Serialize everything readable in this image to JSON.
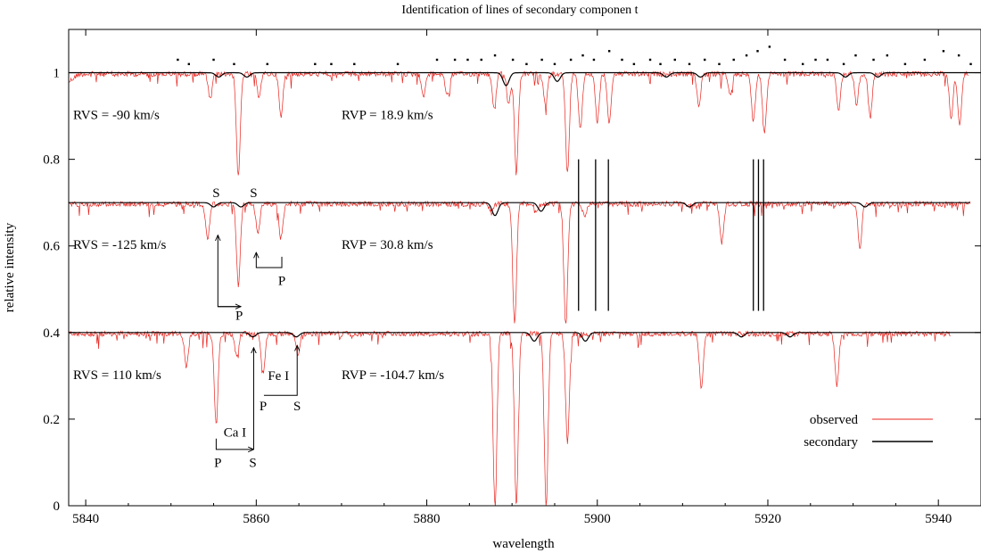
{
  "chart_data": {
    "type": "line",
    "title": "Identification of lines of secondary componen t",
    "xlabel": "wavelength",
    "ylabel": "relative intensity",
    "xlim": [
      5838,
      5945
    ],
    "ylim": [
      0,
      1.1
    ],
    "xticks": [
      5840,
      5860,
      5880,
      5900,
      5920,
      5940
    ],
    "yticks": [
      0,
      0.2,
      0.4,
      0.6,
      0.8,
      1
    ],
    "ytick_labels": [
      "0",
      "0.2",
      "0.4",
      "0.6",
      "0.8",
      "1"
    ],
    "grid": false,
    "legend": {
      "placement": "bottom-right",
      "entries": [
        {
          "name": "observed",
          "color": "#e8251f"
        },
        {
          "name": "secondary",
          "color": "#000000"
        }
      ]
    },
    "panels": [
      {
        "continuum": 1.0,
        "rvs_label": "RVS = -90 km/s",
        "rvp_label": "RVP = 18.9 km/s",
        "observed_lines": [
          [
            5854.6,
            0.94
          ],
          [
            5857.9,
            0.76
          ],
          [
            5860.3,
            0.95
          ],
          [
            5862.9,
            0.9
          ],
          [
            5879.6,
            0.95
          ],
          [
            5882.4,
            0.95
          ],
          [
            5887.9,
            0.92
          ],
          [
            5889.6,
            0.93
          ],
          [
            5890.5,
            0.77
          ],
          [
            5893.9,
            0.93
          ],
          [
            5896.5,
            0.77
          ],
          [
            5898.0,
            0.87
          ],
          [
            5900.0,
            0.89
          ],
          [
            5901.4,
            0.89
          ],
          [
            5911.9,
            0.93
          ],
          [
            5915.6,
            0.95
          ],
          [
            5918.3,
            0.89
          ],
          [
            5919.6,
            0.86
          ],
          [
            5928.3,
            0.92
          ],
          [
            5930.4,
            0.93
          ],
          [
            5932.0,
            0.9
          ],
          [
            5941.5,
            0.9
          ],
          [
            5942.5,
            0.88
          ]
        ],
        "secondary_lines": [
          [
            5855.6,
            0.99
          ],
          [
            5858.9,
            0.99
          ],
          [
            5889.3,
            0.97
          ],
          [
            5895.3,
            0.98
          ],
          [
            5908.1,
            0.99
          ],
          [
            5912.1,
            0.99
          ],
          [
            5929.1,
            0.99
          ],
          [
            5932.9,
            0.99
          ]
        ],
        "residual_points": [
          [
            5850.8,
            1.03
          ],
          [
            5852.1,
            1.02
          ],
          [
            5855.0,
            1.03
          ],
          [
            5857.4,
            1.02
          ],
          [
            5861.3,
            1.02
          ],
          [
            5866.9,
            1.02
          ],
          [
            5868.8,
            1.02
          ],
          [
            5871.5,
            1.02
          ],
          [
            5876.6,
            1.02
          ],
          [
            5881.2,
            1.03
          ],
          [
            5883.3,
            1.03
          ],
          [
            5884.8,
            1.03
          ],
          [
            5886.4,
            1.03
          ],
          [
            5888.0,
            1.04
          ],
          [
            5890.1,
            1.03
          ],
          [
            5891.7,
            1.02
          ],
          [
            5893.5,
            1.03
          ],
          [
            5895.0,
            1.02
          ],
          [
            5896.9,
            1.03
          ],
          [
            5898.3,
            1.04
          ],
          [
            5899.6,
            1.03
          ],
          [
            5901.4,
            1.05
          ],
          [
            5902.9,
            1.03
          ],
          [
            5904.3,
            1.02
          ],
          [
            5906.2,
            1.03
          ],
          [
            5907.4,
            1.02
          ],
          [
            5909.1,
            1.03
          ],
          [
            5910.8,
            1.02
          ],
          [
            5912.6,
            1.03
          ],
          [
            5914.3,
            1.02
          ],
          [
            5916.0,
            1.03
          ],
          [
            5917.5,
            1.04
          ],
          [
            5918.8,
            1.05
          ],
          [
            5920.2,
            1.06
          ],
          [
            5922.0,
            1.03
          ],
          [
            5924.1,
            1.02
          ],
          [
            5925.6,
            1.03
          ],
          [
            5927.0,
            1.03
          ],
          [
            5928.9,
            1.02
          ],
          [
            5930.3,
            1.04
          ],
          [
            5932.4,
            1.03
          ],
          [
            5934.0,
            1.04
          ],
          [
            5936.1,
            1.02
          ],
          [
            5938.4,
            1.03
          ],
          [
            5940.6,
            1.05
          ],
          [
            5942.4,
            1.04
          ],
          [
            5943.8,
            1.02
          ]
        ]
      },
      {
        "continuum": 0.7,
        "rvs_label": "RVS = -125 km/s",
        "rvp_label": "RVP = 30.8 km/s",
        "observed_lines": [
          [
            5854.3,
            0.62
          ],
          [
            5857.9,
            0.51
          ],
          [
            5860.2,
            0.63
          ],
          [
            5862.9,
            0.62
          ],
          [
            5887.6,
            0.68
          ],
          [
            5890.3,
            0.42
          ],
          [
            5892.9,
            0.68
          ],
          [
            5896.3,
            0.42
          ],
          [
            5898.5,
            0.67
          ],
          [
            5914.6,
            0.61
          ],
          [
            5930.8,
            0.6
          ]
        ],
        "secondary_lines": [
          [
            5855.0,
            0.69
          ],
          [
            5858.2,
            0.69
          ],
          [
            5888.0,
            0.67
          ],
          [
            5893.4,
            0.68
          ],
          [
            5910.8,
            0.69
          ],
          [
            5931.4,
            0.69
          ]
        ],
        "s_marks": [
          [
            5855.3,
            "S"
          ],
          [
            5859.7,
            "S"
          ]
        ]
      },
      {
        "continuum": 0.4,
        "rvs_label": "RVS = 110 km/s",
        "rvp_label": "RVP = -104.7 km/s",
        "observed_lines": [
          [
            5851.8,
            0.32
          ],
          [
            5855.3,
            0.19
          ],
          [
            5857.7,
            0.35
          ],
          [
            5860.8,
            0.31
          ],
          [
            5864.9,
            0.35
          ],
          [
            5888.0,
            0.0
          ],
          [
            5890.5,
            0.0
          ],
          [
            5894.0,
            0.0
          ],
          [
            5896.5,
            0.15
          ],
          [
            5912.2,
            0.27
          ],
          [
            5928.1,
            0.28
          ]
        ],
        "secondary_lines": [
          [
            5859.6,
            0.39
          ],
          [
            5864.7,
            0.39
          ],
          [
            5892.6,
            0.38
          ],
          [
            5898.6,
            0.38
          ],
          [
            5916.9,
            0.39
          ],
          [
            5922.6,
            0.39
          ]
        ]
      }
    ],
    "vertical_markers": {
      "x": [
        5897.8,
        5899.8,
        5901.3,
        5918.3,
        5918.9,
        5919.5
      ],
      "y_range": [
        0.45,
        0.8
      ]
    },
    "annotations": {
      "p_labels": [
        {
          "text": "P",
          "x": 5858.0,
          "y": 0.43
        },
        {
          "text": "P",
          "x": 5863.0,
          "y": 0.51
        },
        {
          "text": "P",
          "x": 5860.8,
          "y": 0.22
        },
        {
          "text": "P",
          "x": 5855.5,
          "y": 0.09
        }
      ],
      "s_labels": [
        {
          "text": "S",
          "x": 5864.8,
          "y": 0.22
        },
        {
          "text": "S",
          "x": 5859.6,
          "y": 0.09
        }
      ],
      "element_labels": [
        {
          "text": "Fe I",
          "x": 5862.6,
          "y": 0.29
        },
        {
          "text": "Ca I",
          "x": 5857.5,
          "y": 0.16
        }
      ]
    }
  }
}
